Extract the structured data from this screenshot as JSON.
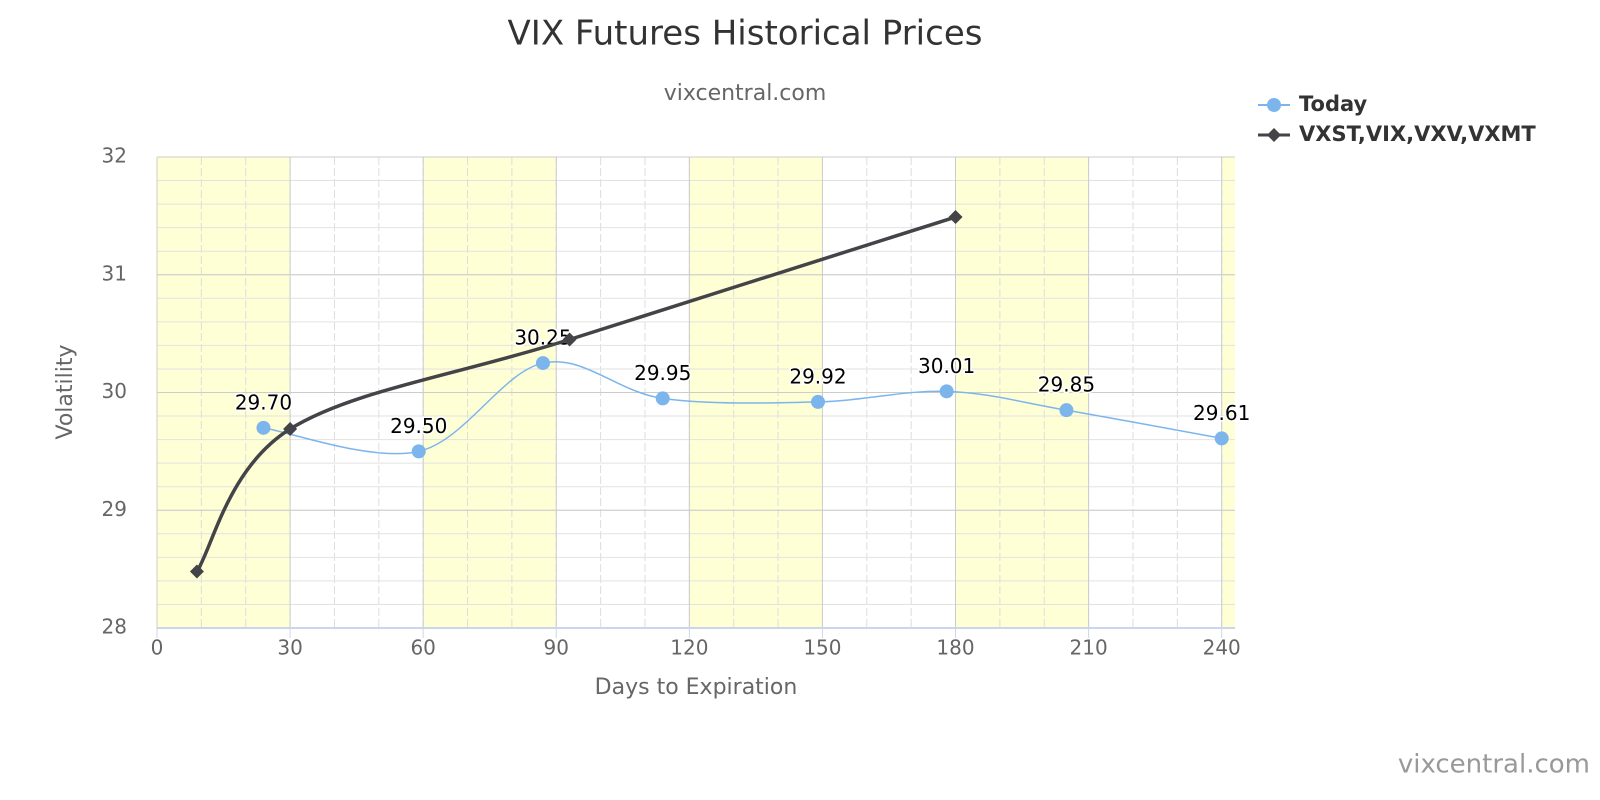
{
  "chart_data": {
    "type": "line",
    "title": "VIX Futures Historical Prices",
    "subtitle": "vixcentral.com",
    "credits": "vixcentral.com",
    "x_label": "Days to Expiration",
    "y_label": "Volatility",
    "xlim": [
      0,
      243
    ],
    "ylim": [
      28,
      32
    ],
    "xticks": [
      0,
      30,
      60,
      90,
      120,
      150,
      180,
      210,
      240
    ],
    "yticks": [
      28,
      29,
      30,
      31,
      32
    ],
    "x_minor_interval": 10,
    "y_minor_interval": 0.2,
    "grid": true,
    "band_color": "#ffffd6",
    "legend": "top-right",
    "series": [
      {
        "name": "Today",
        "color": "#7cb5ec",
        "marker": "circle",
        "x": [
          24,
          59,
          87,
          114,
          149,
          178,
          205,
          240
        ],
        "values": [
          29.7,
          29.5,
          30.25,
          29.95,
          29.92,
          30.01,
          29.85,
          29.61
        ],
        "value_labels": [
          "29.70",
          "29.50",
          "30.25",
          "29.95",
          "29.92",
          "30.01",
          "29.85",
          "29.61"
        ]
      },
      {
        "name": "VXST,VIX,VXV,VXMT",
        "color": "#434348",
        "marker": "diamond",
        "x": [
          9,
          30,
          93,
          180
        ],
        "values": [
          28.48,
          29.69,
          30.45,
          31.49
        ]
      }
    ]
  }
}
